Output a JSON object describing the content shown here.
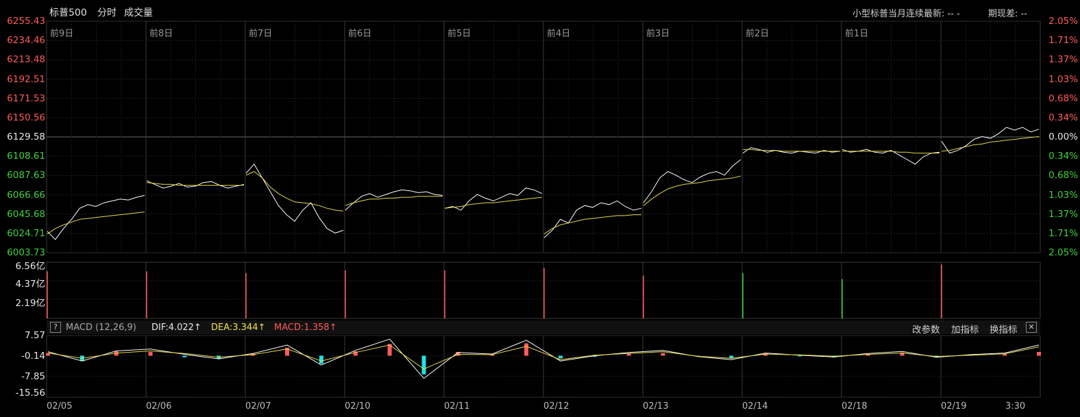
{
  "header": {
    "index_name": "标普500",
    "tab_intraday": "分时",
    "tab_volume": "成交量",
    "futures_label": "小型标普当月连续最新: -- -",
    "basis_label": "期现差: --"
  },
  "day_labels": [
    "前9日",
    "前8日",
    "前7日",
    "前6日",
    "前5日",
    "前4日",
    "前3日",
    "前2日",
    "前1日"
  ],
  "price_axis": {
    "left_labels": [
      "6255.43",
      "6234.46",
      "6213.48",
      "6192.51",
      "6171.53",
      "6150.56",
      "6129.58",
      "6108.61",
      "6087.63",
      "6066.66",
      "6045.68",
      "6024.71",
      "6003.73"
    ],
    "right_labels": [
      "2.05%",
      "1.71%",
      "1.37%",
      "1.03%",
      "0.68%",
      "0.34%",
      "0.00%",
      "0.34%",
      "0.68%",
      "1.03%",
      "1.37%",
      "1.71%",
      "2.05%"
    ],
    "reference": "6129.58"
  },
  "volume_axis": {
    "labels": [
      "6.56亿",
      "4.37亿",
      "2.19亿"
    ]
  },
  "macd": {
    "title": "MACD (12,26,9)",
    "dif": "DIF:4.022↑",
    "dea": "DEA:3.344↑",
    "macd": "MACD:1.358↑",
    "axis_labels": [
      "7.57",
      "-0.14",
      "-7.85",
      "-15.56"
    ],
    "btn_params": "改参数",
    "btn_add": "加指标",
    "btn_switch": "换指标",
    "help_icon": "?",
    "close_icon": "✕"
  },
  "date_labels": [
    "02/05",
    "02/06",
    "02/07",
    "02/10",
    "02/11",
    "02/12",
    "02/13",
    "02/14",
    "02/18",
    "02/19",
    "3:30"
  ],
  "colors": {
    "up": "#ff5b5b",
    "down": "#3fd23f",
    "price": "#ffffff",
    "avg": "#e6d84a",
    "macd_down": "#22e0e0"
  },
  "chart_data": {
    "type": "line",
    "ylim": [
      6003.73,
      6255.43
    ],
    "reference": 6129.58,
    "sessions": [
      {
        "label": "02/05",
        "price": [
          6027,
          6018,
          6030,
          6040,
          6052,
          6056,
          6054,
          6058,
          6060,
          6062,
          6061,
          6064,
          6066
        ],
        "avg": [
          6024,
          6030,
          6034,
          6037,
          6040,
          6041,
          6042,
          6043,
          6044,
          6045,
          6046,
          6047,
          6048
        ]
      },
      {
        "label": "02/06",
        "price": [
          6082,
          6078,
          6074,
          6076,
          6079,
          6075,
          6076,
          6080,
          6081,
          6077,
          6074,
          6076,
          6078
        ],
        "avg": [
          6080,
          6079,
          6078,
          6078,
          6077,
          6077,
          6077,
          6077,
          6077,
          6077,
          6077,
          6077,
          6077
        ]
      },
      {
        "label": "02/07",
        "price": [
          6090,
          6100,
          6085,
          6070,
          6055,
          6045,
          6038,
          6050,
          6058,
          6042,
          6030,
          6025,
          6028
        ],
        "avg": [
          6088,
          6092,
          6085,
          6075,
          6068,
          6063,
          6059,
          6058,
          6057,
          6055,
          6052,
          6050,
          6049
        ]
      },
      {
        "label": "02/10",
        "price": [
          6050,
          6058,
          6065,
          6068,
          6064,
          6067,
          6070,
          6072,
          6071,
          6069,
          6070,
          6067,
          6066
        ],
        "avg": [
          6055,
          6058,
          6060,
          6062,
          6062,
          6063,
          6063,
          6064,
          6064,
          6065,
          6065,
          6065,
          6065
        ]
      },
      {
        "label": "02/11",
        "price": [
          6052,
          6054,
          6050,
          6060,
          6067,
          6063,
          6060,
          6064,
          6068,
          6066,
          6074,
          6072,
          6068
        ],
        "avg": [
          6052,
          6053,
          6054,
          6056,
          6057,
          6058,
          6058,
          6059,
          6060,
          6061,
          6062,
          6063,
          6064
        ]
      },
      {
        "label": "02/12",
        "price": [
          6020,
          6028,
          6040,
          6036,
          6050,
          6055,
          6053,
          6058,
          6056,
          6060,
          6054,
          6050,
          6052
        ],
        "avg": [
          6024,
          6030,
          6034,
          6036,
          6038,
          6040,
          6041,
          6042,
          6043,
          6044,
          6044,
          6045,
          6045
        ]
      },
      {
        "label": "02/13",
        "price": [
          6058,
          6070,
          6085,
          6092,
          6088,
          6083,
          6080,
          6086,
          6090,
          6092,
          6088,
          6098,
          6105
        ],
        "avg": [
          6055,
          6062,
          6068,
          6073,
          6076,
          6078,
          6079,
          6080,
          6082,
          6083,
          6084,
          6085,
          6087
        ]
      },
      {
        "label": "02/14",
        "price": [
          6112,
          6118,
          6116,
          6113,
          6115,
          6113,
          6112,
          6114,
          6113,
          6112,
          6115,
          6113,
          6114
        ],
        "avg": [
          6116,
          6116,
          6115,
          6115,
          6115,
          6114,
          6114,
          6114,
          6114,
          6114,
          6114,
          6114,
          6114
        ]
      },
      {
        "label": "02/18",
        "price": [
          6116,
          6113,
          6114,
          6116,
          6113,
          6112,
          6115,
          6110,
          6105,
          6100,
          6108,
          6112,
          6113
        ],
        "avg": [
          6114,
          6114,
          6114,
          6114,
          6114,
          6114,
          6114,
          6113,
          6113,
          6112,
          6112,
          6112,
          6112
        ]
      },
      {
        "label": "02/19",
        "price": [
          6125,
          6112,
          6115,
          6120,
          6127,
          6130,
          6128,
          6133,
          6140,
          6137,
          6140,
          6135,
          6138
        ],
        "avg": [
          6114,
          6115,
          6117,
          6119,
          6121,
          6122,
          6124,
          6125,
          6126,
          6127,
          6128,
          6129,
          6130
        ]
      }
    ],
    "volume_opening_spike": [
      5.5,
      5.5,
      5.3,
      5.6,
      5.6,
      5.9,
      5.0,
      5.3,
      4.6,
      6.3
    ],
    "volume_opening_color": [
      "up",
      "up",
      "up",
      "up",
      "up",
      "up",
      "up",
      "down",
      "down",
      "up"
    ],
    "macd_dif": [
      1.5,
      -2.0,
      1.8,
      2.5,
      0.5,
      -1.2,
      0.8,
      4.0,
      -3.5,
      2.0,
      6.2,
      -8.5,
      1.2,
      0.6,
      5.8,
      -2.0,
      0.0,
      1.2,
      2.0,
      -0.3,
      -1.5,
      1.0,
      0.2,
      -0.5,
      0.8,
      1.6,
      -0.6,
      0.4,
      1.0,
      4.0
    ],
    "macd_dea": [
      1.0,
      -1.0,
      1.0,
      1.8,
      0.8,
      -0.6,
      0.4,
      2.5,
      -2.0,
      1.2,
      4.0,
      -5.0,
      0.5,
      0.4,
      3.5,
      -1.5,
      0.2,
      0.8,
      1.5,
      -0.2,
      -1.0,
      0.6,
      0.3,
      -0.2,
      0.5,
      1.0,
      -0.3,
      0.2,
      0.7,
      3.3
    ],
    "macd_hist": [
      1.0,
      -2.0,
      1.6,
      1.4,
      -0.6,
      -1.2,
      0.8,
      3.0,
      -3.0,
      1.6,
      4.4,
      -7.0,
      1.4,
      0.4,
      4.6,
      -1.0,
      -0.4,
      0.8,
      1.0,
      -0.2,
      -1.0,
      0.8,
      -0.2,
      -0.6,
      0.6,
      1.2,
      -0.6,
      0.4,
      0.6,
      1.4
    ]
  }
}
